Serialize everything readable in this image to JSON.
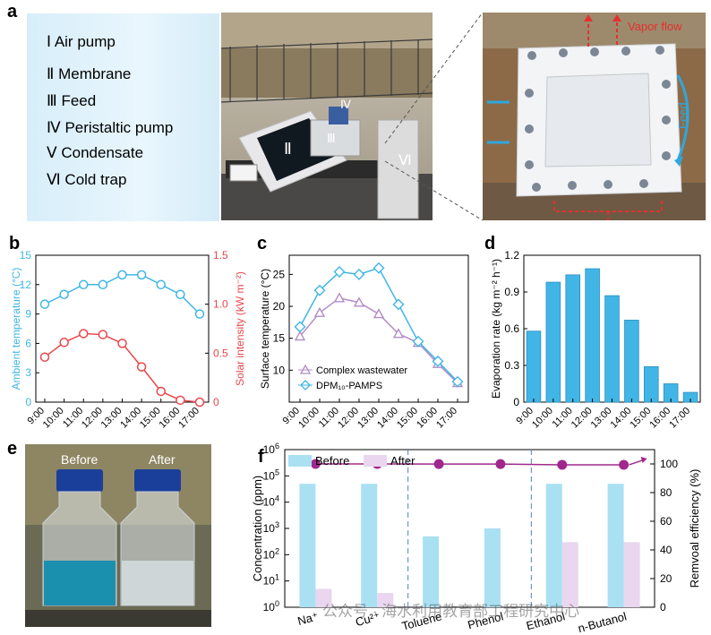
{
  "panel_a": {
    "letter": "a",
    "legend": [
      {
        "numeral": "Ⅰ",
        "label": "Air pump"
      },
      {
        "numeral": "Ⅱ",
        "label": "Membrane"
      },
      {
        "numeral": "Ⅲ",
        "label": "Feed"
      },
      {
        "numeral": "Ⅳ",
        "label": "Peristaltic pump"
      },
      {
        "numeral": "Ⅴ",
        "label": "Condensate"
      },
      {
        "numeral": "Ⅵ",
        "label": "Cold trap"
      }
    ],
    "photo_markers": [
      "Ⅱ",
      "Ⅲ",
      "Ⅳ",
      "Ⅵ"
    ],
    "vapor_label": "Vapor flow",
    "feed_label": "Feed"
  },
  "panel_e": {
    "letter": "e",
    "before_label": "Before",
    "after_label": "After"
  },
  "watermark": "公众号 · 海水利用教育部工程研究中心",
  "colors": {
    "cyan": "#41b6e6",
    "red": "#e8474c",
    "purple": "#b48cc8",
    "magenta": "#a0288c",
    "light_blue_bar": "#a9e1f3",
    "light_pink_bar": "#ead6ee"
  },
  "chart_data": [
    {
      "id": "b",
      "letter": "b",
      "type": "line",
      "x": [
        "9:00",
        "10:00",
        "11:00",
        "12:00",
        "13:00",
        "14:00",
        "15:00",
        "16:00",
        "17:00"
      ],
      "series": [
        {
          "name": "Ambient temperature",
          "axis": "left",
          "values": [
            10,
            11,
            12,
            12,
            13,
            13,
            12,
            11,
            9
          ]
        },
        {
          "name": "Solar intensity",
          "axis": "right",
          "values": [
            0.46,
            0.61,
            0.7,
            0.69,
            0.6,
            0.36,
            0.11,
            0.02,
            0.0
          ]
        }
      ],
      "ylabel": "Ambient temperature (°C)",
      "ylabel_right": "Solar intensity (kW m⁻²)",
      "ylim": [
        0,
        15
      ],
      "yticks": [
        "0",
        "3",
        "6",
        "9",
        "12",
        "15"
      ],
      "ylim_right": [
        0,
        1.5
      ],
      "yticks_right": [
        "0",
        "0.5",
        "1.0",
        "1.5"
      ]
    },
    {
      "id": "c",
      "letter": "c",
      "type": "line",
      "x": [
        "9:00",
        "10:00",
        "11:00",
        "12:00",
        "13:00",
        "14:00",
        "15:00",
        "16:00",
        "17:00"
      ],
      "series": [
        {
          "name": "Complex wastewater",
          "values": [
            15.3,
            19.0,
            21.3,
            20.6,
            18.8,
            15.7,
            14.3,
            11.0,
            8.0
          ]
        },
        {
          "name": "DPM₁₀-PAMPS",
          "values": [
            16.8,
            22.5,
            25.4,
            25.0,
            26.0,
            20.3,
            14.5,
            11.4,
            8.2
          ]
        }
      ],
      "ylabel": "Surface temperature (°C)",
      "ylim": [
        5,
        28
      ],
      "yticks": [
        "10",
        "15",
        "20",
        "25"
      ]
    },
    {
      "id": "d",
      "letter": "d",
      "type": "bar",
      "categories": [
        "9:00",
        "10:00",
        "11:00",
        "12:00",
        "13:00",
        "14:00",
        "15:00",
        "16:00",
        "17:00"
      ],
      "values": [
        0.58,
        0.98,
        1.04,
        1.09,
        0.87,
        0.67,
        0.29,
        0.15,
        0.08
      ],
      "ylabel": "Evaporation rate (kg m⁻² h⁻¹)",
      "ylim": [
        0,
        1.2
      ],
      "yticks": [
        "0",
        "0.3",
        "0.6",
        "0.9",
        "1.2"
      ]
    },
    {
      "id": "f",
      "letter": "f",
      "type": "bar",
      "categories": [
        "Na⁺",
        "Cu²⁺",
        "Toluene",
        "Phenol",
        "Ethanol",
        "n-Butanol"
      ],
      "series": [
        {
          "name": "Before",
          "values": [
            50000,
            50000,
            500,
            1000,
            50000,
            50000
          ]
        },
        {
          "name": "After",
          "values": [
            5,
            3.5,
            null,
            null,
            300,
            300
          ]
        }
      ],
      "line": {
        "values": [
          99.99,
          99.99,
          99.9,
          99.9,
          99.4,
          99.4
        ]
      },
      "ylabel": "Concentration (ppm)",
      "ylabel_right": "Remvoal efficiency (%)",
      "yscale": "log",
      "ylim": [
        1,
        1000000
      ],
      "ylim_right": [
        0,
        110
      ],
      "yticks_right": [
        "0",
        "20",
        "40",
        "60",
        "80",
        "100"
      ]
    }
  ]
}
